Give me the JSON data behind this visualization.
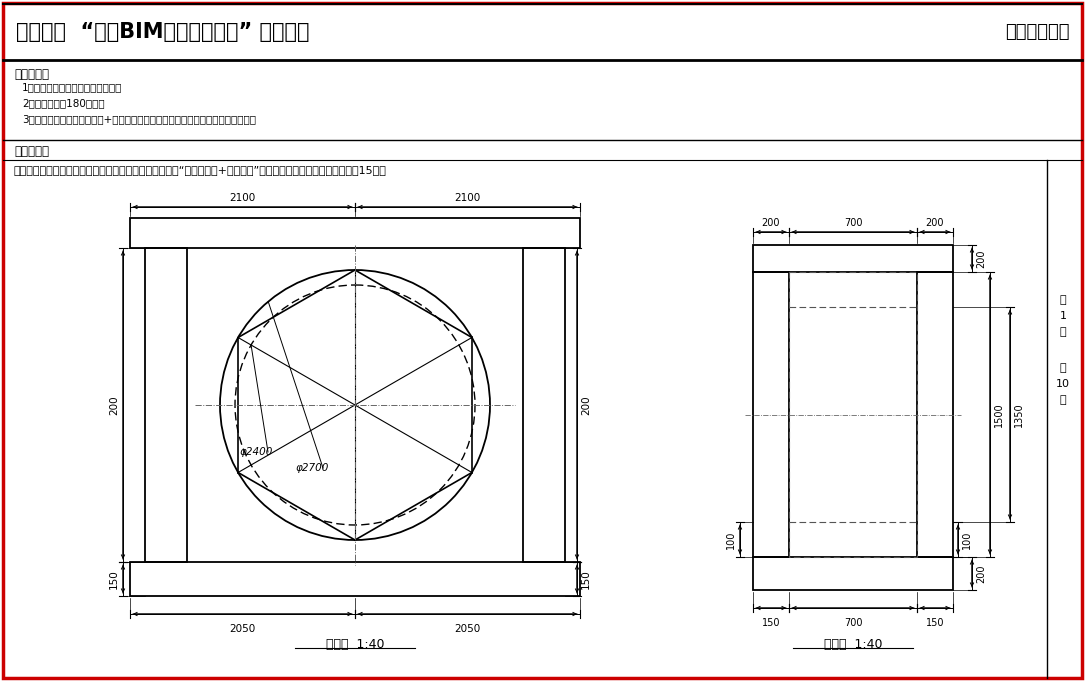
{
  "title_left": "第十四期  “全国BIM技能等级考试” 一级试题",
  "title_right": "中国图学学会",
  "exam_req_title": "考试要求：",
  "exam_req": [
    "1、考试方式：计算机操作，闭卷；",
    "2、考试时间为180分钟；",
    "3、新建文件夹（以准考证号+姓名命名），用于存放本次考试中生成的全部文件。"
  ],
  "problem_title": "试题部分：",
  "problem_text": "一、根据给定尺寸建立六边形门洞模型，请将模型文件以“六边形门洞+考生姓名”为文件名保存到考生文件夹中。（15分）",
  "front_label": "主视图  1:40",
  "side_label": "侧视图  1:40",
  "page_chars": [
    "第",
    "1",
    "页",
    "",
    "共",
    "10",
    "页"
  ],
  "bg_color": "#ffffff",
  "red_color": "#cc0000",
  "black": "#000000",
  "gray": "#888888"
}
